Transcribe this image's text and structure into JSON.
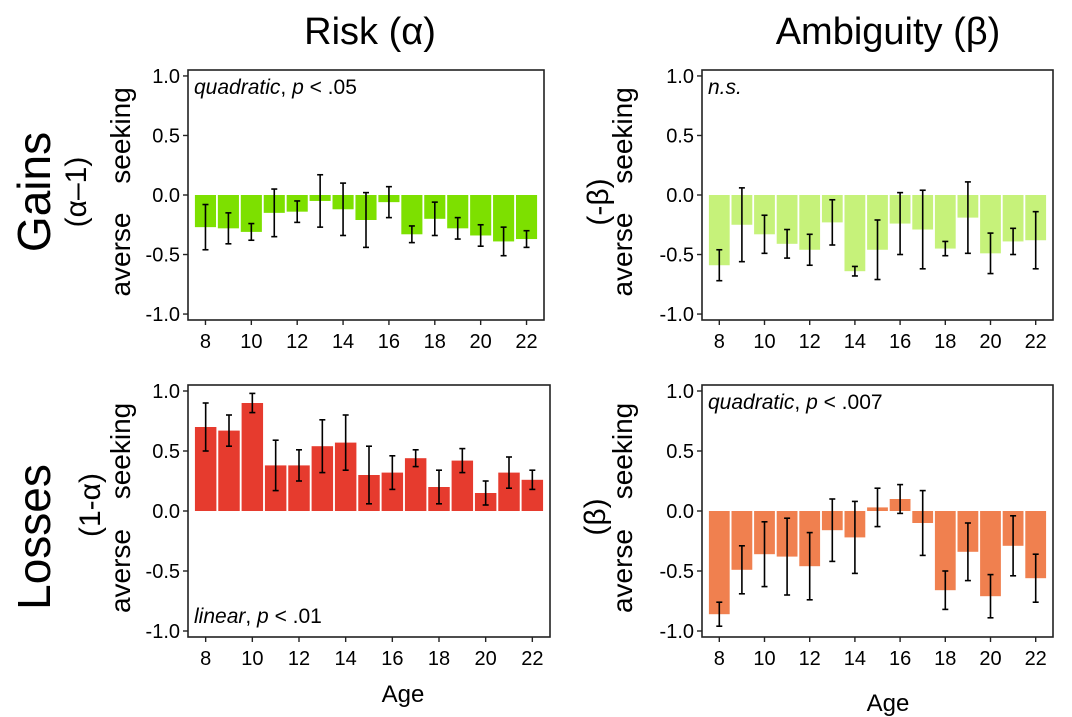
{
  "columns": [
    "Risk (α)",
    "Ambiguity (β)"
  ],
  "rows": [
    {
      "title": "Gains",
      "subtitle": "(α–1)"
    },
    {
      "title": "Losses",
      "subtitle": "(1-α)"
    }
  ],
  "axis_side_labels": {
    "top": "seeking",
    "bottom": "averse"
  },
  "xlabel": "Age",
  "colors": {
    "gains_risk": "#7de000",
    "gains_ambiguity": "#c6f27a",
    "losses_risk": "#e63b2e",
    "losses_ambiguity": "#f0804f"
  },
  "chart_data": [
    {
      "id": "gains-risk",
      "type": "bar",
      "ylabel": "(α–1)",
      "categories": [
        8,
        9,
        10,
        11,
        12,
        13,
        14,
        15,
        16,
        17,
        18,
        19,
        20,
        21,
        22
      ],
      "xticks": [
        8,
        10,
        12,
        14,
        16,
        18,
        20,
        22
      ],
      "ylim": [
        -1.05,
        1.05
      ],
      "yticks": [
        -1.0,
        -0.5,
        0.0,
        0.5,
        1.0
      ],
      "values": [
        -0.27,
        -0.28,
        -0.31,
        -0.15,
        -0.14,
        -0.05,
        -0.12,
        -0.21,
        -0.06,
        -0.33,
        -0.2,
        -0.28,
        -0.34,
        -0.39,
        -0.37
      ],
      "error": [
        0.19,
        0.13,
        0.07,
        0.2,
        0.09,
        0.22,
        0.22,
        0.23,
        0.13,
        0.07,
        0.14,
        0.09,
        0.09,
        0.12,
        0.07
      ],
      "annotation": {
        "italic": "quadratic",
        "sep": ", ",
        "italic2": "p",
        "rest": " < .05",
        "position": "top-left"
      }
    },
    {
      "id": "gains-ambiguity",
      "type": "bar",
      "ylabel": "(-β)",
      "categories": [
        8,
        9,
        10,
        11,
        12,
        13,
        14,
        15,
        16,
        17,
        18,
        19,
        20,
        21,
        22
      ],
      "xticks": [
        8,
        10,
        12,
        14,
        16,
        18,
        20,
        22
      ],
      "ylim": [
        -1.05,
        1.05
      ],
      "yticks": [
        -1.0,
        -0.5,
        0.0,
        0.5,
        1.0
      ],
      "values": [
        -0.59,
        -0.25,
        -0.33,
        -0.41,
        -0.46,
        -0.23,
        -0.64,
        -0.46,
        -0.24,
        -0.29,
        -0.45,
        -0.19,
        -0.49,
        -0.39,
        -0.38
      ],
      "error": [
        0.13,
        0.31,
        0.16,
        0.12,
        0.13,
        0.19,
        0.04,
        0.25,
        0.26,
        0.33,
        0.06,
        0.3,
        0.17,
        0.11,
        0.24
      ],
      "annotation": {
        "italic": "n.s.",
        "sep": "",
        "italic2": "",
        "rest": "",
        "position": "top-left"
      }
    },
    {
      "id": "losses-risk",
      "type": "bar",
      "ylabel": "(1-α)",
      "categories": [
        8,
        9,
        10,
        11,
        12,
        13,
        14,
        15,
        16,
        17,
        18,
        19,
        20,
        21,
        22
      ],
      "xticks": [
        8,
        10,
        12,
        14,
        16,
        18,
        20,
        22
      ],
      "ylim": [
        -1.05,
        1.05
      ],
      "yticks": [
        -1.0,
        -0.5,
        0.0,
        0.5,
        1.0
      ],
      "values": [
        0.7,
        0.67,
        0.9,
        0.38,
        0.38,
        0.54,
        0.57,
        0.3,
        0.32,
        0.44,
        0.2,
        0.42,
        0.15,
        0.32,
        0.26
      ],
      "error": [
        0.2,
        0.13,
        0.08,
        0.21,
        0.13,
        0.22,
        0.23,
        0.24,
        0.14,
        0.07,
        0.14,
        0.1,
        0.1,
        0.13,
        0.08
      ],
      "annotation": {
        "italic": "linear",
        "sep": ", ",
        "italic2": "p",
        "rest": " < .01",
        "position": "bottom-left"
      }
    },
    {
      "id": "losses-ambiguity",
      "type": "bar",
      "ylabel": "(β)",
      "categories": [
        8,
        9,
        10,
        11,
        12,
        13,
        14,
        15,
        16,
        17,
        18,
        19,
        20,
        21,
        22
      ],
      "xticks": [
        8,
        10,
        12,
        14,
        16,
        18,
        20,
        22
      ],
      "ylim": [
        -1.05,
        1.05
      ],
      "yticks": [
        -1.0,
        -0.5,
        0.0,
        0.5,
        1.0
      ],
      "values": [
        -0.86,
        -0.49,
        -0.36,
        -0.38,
        -0.46,
        -0.16,
        -0.22,
        0.03,
        0.1,
        -0.1,
        -0.66,
        -0.34,
        -0.71,
        -0.29,
        -0.56
      ],
      "error": [
        0.1,
        0.2,
        0.27,
        0.32,
        0.28,
        0.26,
        0.3,
        0.16,
        0.12,
        0.27,
        0.16,
        0.24,
        0.18,
        0.25,
        0.2
      ],
      "annotation": {
        "italic": "quadratic",
        "sep": ", ",
        "italic2": "p",
        "rest": " < .007",
        "position": "top-left"
      }
    }
  ]
}
